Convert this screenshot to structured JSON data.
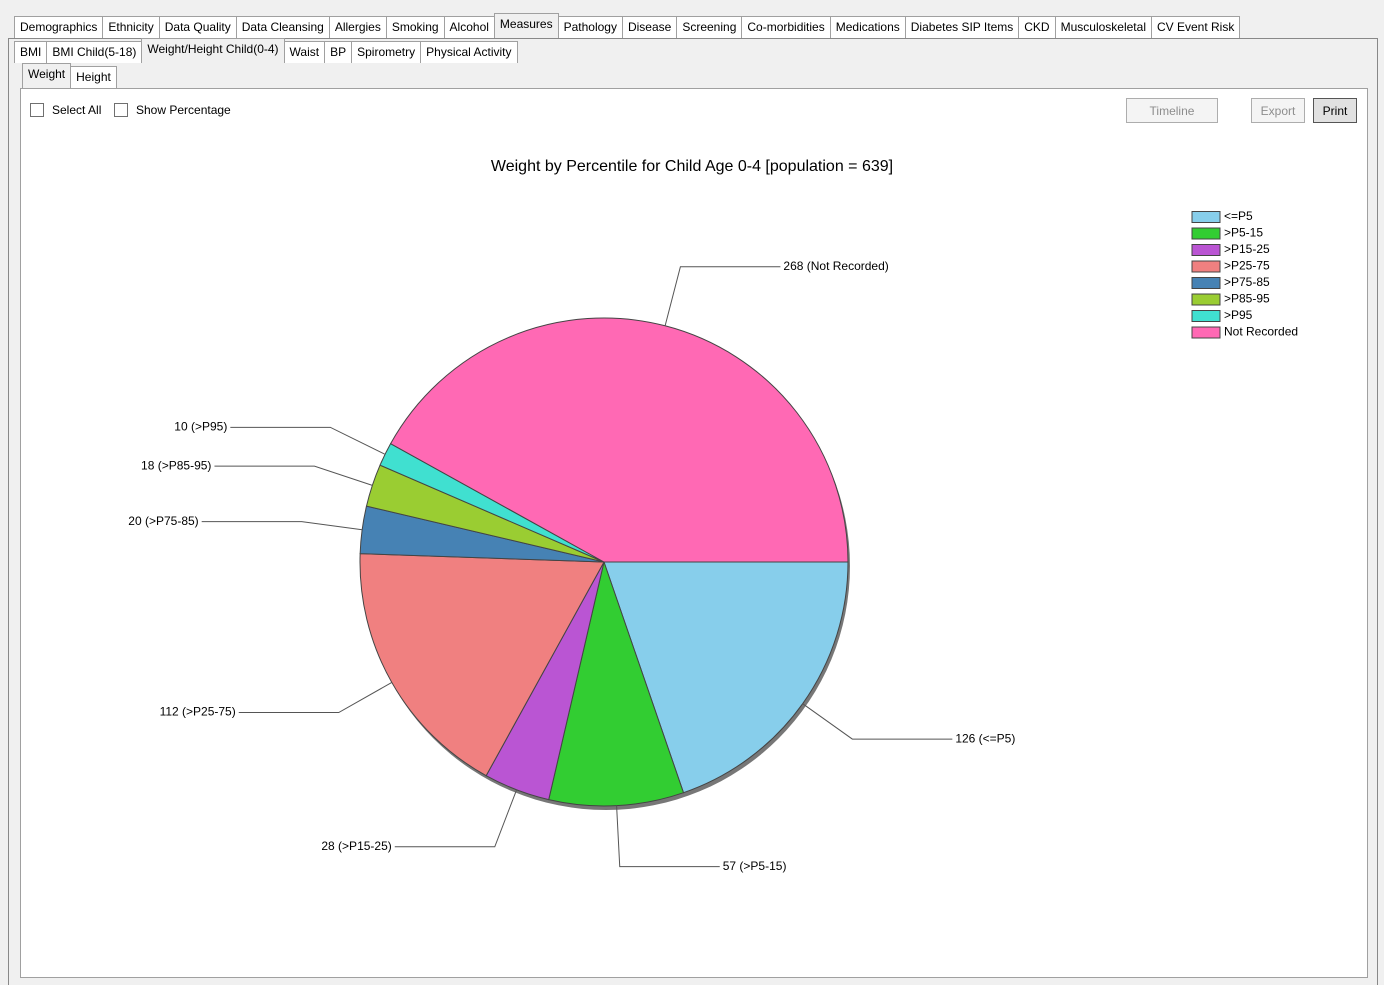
{
  "tabs": [
    "Demographics",
    "Ethnicity",
    "Data Quality",
    "Data Cleansing",
    "Allergies",
    "Smoking",
    "Alcohol",
    "Measures",
    "Pathology",
    "Disease",
    "Screening",
    "Co-morbidities",
    "Medications",
    "Diabetes SIP Items",
    "CKD",
    "Musculoskeletal",
    "CV Event Risk"
  ],
  "subtabs": [
    "BMI",
    "BMI Child(5-18)",
    "Weight/Height Child(0-4)",
    "Waist",
    "BP",
    "Spirometry",
    "Physical Activity"
  ],
  "viewtabs": [
    "Weight",
    "Height"
  ],
  "options": [
    "Select All",
    "Show Percentage"
  ],
  "buttons": [
    "Timeline",
    "Export",
    "Print"
  ],
  "chart_data": {
    "type": "pie",
    "title": "Weight by Percentile for Child Age 0-4 [population = 639]",
    "categories": [
      "<=P5",
      ">P5-15",
      ">P15-25",
      ">P25-75",
      ">P75-85",
      ">P85-95",
      ">P95",
      "Not Recorded"
    ],
    "values": [
      126,
      57,
      28,
      112,
      20,
      18,
      10,
      268
    ],
    "value_labels": [
      "126 (<=P5)",
      "57 (>P5-15)",
      "28 (>P15-25)",
      "112 (>P25-75)",
      "20 (>P75-85)",
      "18 (>P85-95)",
      "10 (>P95)",
      "268 (Not Recorded)"
    ],
    "colors": [
      "#87ceeb",
      "#32cd32",
      "#ba55d3",
      "#f08080",
      "#4682b4",
      "#9acd32",
      "#40e0d0",
      "#ff69b4"
    ],
    "legend": "top-right"
  }
}
